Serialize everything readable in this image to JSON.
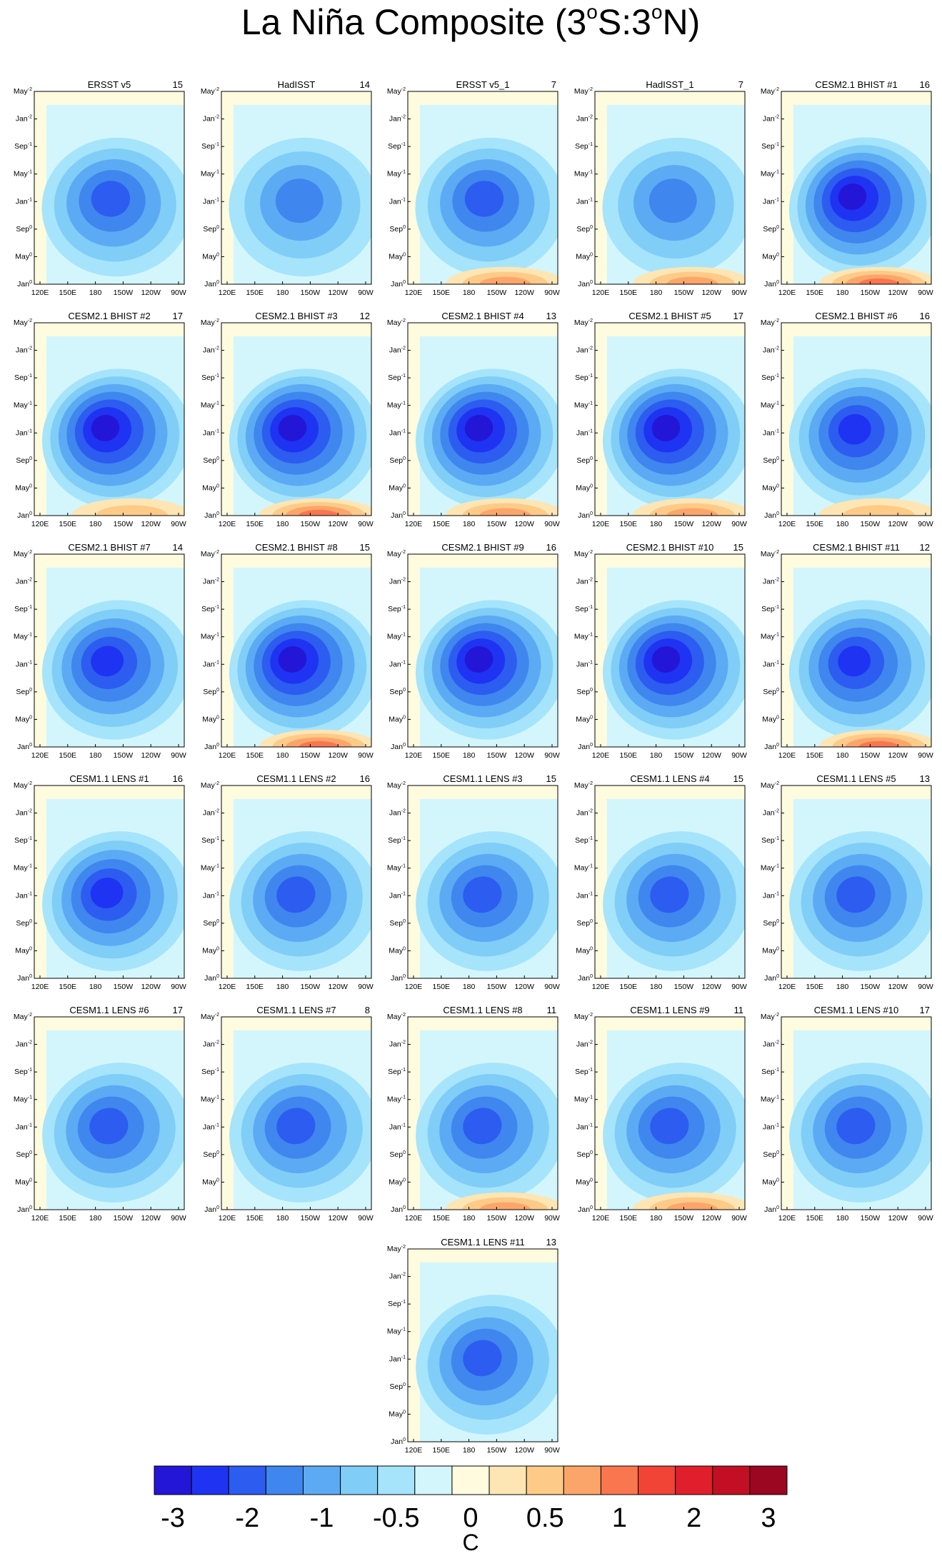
{
  "chart_data": {
    "type": "heatmap",
    "title_main": "La Niña Composite (3",
    "title_sup1": "o",
    "title_mid": "S:3",
    "title_sup2": "o",
    "title_end": "N)",
    "units": "C",
    "x_ticks": [
      "120E",
      "150E",
      "180",
      "150W",
      "120W",
      "90W"
    ],
    "y_ticks": [
      {
        "base": "Jan",
        "sup": "0"
      },
      {
        "base": "May",
        "sup": "0"
      },
      {
        "base": "Sep",
        "sup": "0"
      },
      {
        "base": "Jan",
        "sup": "-1"
      },
      {
        "base": "May",
        "sup": "-1"
      },
      {
        "base": "Sep",
        "sup": "-1"
      },
      {
        "base": "Jan",
        "sup": "-2"
      },
      {
        "base": "May",
        "sup": "-2"
      }
    ],
    "colorbar": {
      "labels": [
        "-3",
        "-2",
        "-1",
        "-0.5",
        "0",
        "0.5",
        "1",
        "2",
        "3"
      ],
      "colors": [
        "#2416d6",
        "#1f33f2",
        "#2d5cf0",
        "#3f86ee",
        "#5caaf4",
        "#80cdf7",
        "#a6e4fb",
        "#d3f6fd",
        "#fffbdf",
        "#fde6b3",
        "#fdca88",
        "#fca56a",
        "#f9764f",
        "#f14336",
        "#e11f2c",
        "#c20f23",
        "#9b0620"
      ]
    },
    "panels": [
      {
        "name": "ERSST v5",
        "count": "15",
        "cold": 0.55,
        "warmLate": 0.0,
        "tilt": 0.1
      },
      {
        "name": "HadISST",
        "count": "14",
        "cold": 0.45,
        "warmLate": 0.0,
        "tilt": 0.05
      },
      {
        "name": "ERSST v5_1",
        "count": "7",
        "cold": 0.5,
        "warmLate": 0.6,
        "tilt": 0.1
      },
      {
        "name": "HadISST_1",
        "count": "7",
        "cold": 0.45,
        "warmLate": 0.55,
        "tilt": 0.05
      },
      {
        "name": "CESM2.1 BHIST #1",
        "count": "16",
        "cold": 0.9,
        "warmLate": 0.7,
        "tilt": 0.5
      },
      {
        "name": "CESM2.1 BHIST #2",
        "count": "17",
        "cold": 0.9,
        "warmLate": 0.3,
        "tilt": 0.5
      },
      {
        "name": "CESM2.1 BHIST #3",
        "count": "12",
        "cold": 0.95,
        "warmLate": 0.8,
        "tilt": 0.5
      },
      {
        "name": "CESM2.1 BHIST #4",
        "count": "13",
        "cold": 0.95,
        "warmLate": 0.6,
        "tilt": 0.5
      },
      {
        "name": "CESM2.1 BHIST #5",
        "count": "17",
        "cold": 0.9,
        "warmLate": 0.4,
        "tilt": 0.5
      },
      {
        "name": "CESM2.1 BHIST #6",
        "count": "16",
        "cold": 0.75,
        "warmLate": 0.2,
        "tilt": 0.4
      },
      {
        "name": "CESM2.1 BHIST #7",
        "count": "14",
        "cold": 0.85,
        "warmLate": 0.0,
        "tilt": 0.5
      },
      {
        "name": "CESM2.1 BHIST #8",
        "count": "15",
        "cold": 0.9,
        "warmLate": 0.8,
        "tilt": 0.5
      },
      {
        "name": "CESM2.1 BHIST #9",
        "count": "16",
        "cold": 0.95,
        "warmLate": 0.0,
        "tilt": 0.5
      },
      {
        "name": "CESM2.1 BHIST #10",
        "count": "15",
        "cold": 0.9,
        "warmLate": 0.0,
        "tilt": 0.5
      },
      {
        "name": "CESM2.1 BHIST #11",
        "count": "12",
        "cold": 0.85,
        "warmLate": 0.7,
        "tilt": 0.5
      },
      {
        "name": "CESM1.1 LENS #1",
        "count": "16",
        "cold": 0.7,
        "warmLate": 0.0,
        "tilt": 0.6
      },
      {
        "name": "CESM1.1 LENS #2",
        "count": "16",
        "cold": 0.6,
        "warmLate": 0.0,
        "tilt": 0.6
      },
      {
        "name": "CESM1.1 LENS #3",
        "count": "15",
        "cold": 0.6,
        "warmLate": 0.0,
        "tilt": 0.6
      },
      {
        "name": "CESM1.1 LENS #4",
        "count": "15",
        "cold": 0.65,
        "warmLate": 0.0,
        "tilt": 0.6
      },
      {
        "name": "CESM1.1 LENS #5",
        "count": "13",
        "cold": 0.6,
        "warmLate": 0.0,
        "tilt": 0.6
      },
      {
        "name": "CESM1.1 LENS #6",
        "count": "17",
        "cold": 0.6,
        "warmLate": 0.0,
        "tilt": 0.6
      },
      {
        "name": "CESM1.1 LENS #7",
        "count": "8",
        "cold": 0.65,
        "warmLate": 0.0,
        "tilt": 0.6
      },
      {
        "name": "CESM1.1 LENS #8",
        "count": "11",
        "cold": 0.6,
        "warmLate": 0.6,
        "tilt": 0.6
      },
      {
        "name": "CESM1.1 LENS #9",
        "count": "11",
        "cold": 0.65,
        "warmLate": 0.4,
        "tilt": 0.6
      },
      {
        "name": "CESM1.1 LENS #10",
        "count": "17",
        "cold": 0.6,
        "warmLate": 0.0,
        "tilt": 0.6
      },
      {
        "name": "CESM1.1 LENS #11",
        "count": "13",
        "cold": 0.65,
        "warmLate": 0.0,
        "tilt": 0.6
      }
    ]
  }
}
